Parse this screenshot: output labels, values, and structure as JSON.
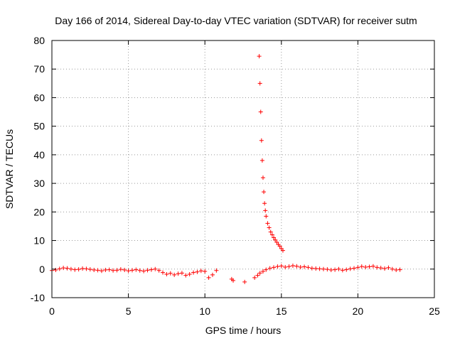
{
  "chart_data": {
    "type": "scatter",
    "title": "Day 166 of 2014, Sidereal Day-to-day VTEC variation (SDTVAR) for receiver sutm",
    "xlabel": "GPS time / hours",
    "ylabel": "SDTVAR / TECUs",
    "xlim": [
      0,
      25
    ],
    "ylim": [
      -10,
      80
    ],
    "x_ticks": [
      0,
      5,
      10,
      15,
      20,
      25
    ],
    "y_ticks": [
      -10,
      0,
      10,
      20,
      30,
      40,
      50,
      60,
      70,
      80
    ],
    "x_tick_labels": [
      "0",
      "5",
      "10",
      "15",
      "20",
      "25"
    ],
    "y_tick_labels": [
      "-10",
      "0",
      "10",
      "20",
      "30",
      "40",
      "50",
      "60",
      "70",
      "80"
    ],
    "grid": true,
    "series": [
      {
        "name": "SDTVAR",
        "color": "#ff0000",
        "marker": "plus",
        "x": [
          0.0,
          0.25,
          0.5,
          0.75,
          1.0,
          1.25,
          1.5,
          1.75,
          2.0,
          2.25,
          2.5,
          2.75,
          3.0,
          3.25,
          3.5,
          3.75,
          4.0,
          4.25,
          4.5,
          4.75,
          5.0,
          5.25,
          5.5,
          5.75,
          6.0,
          6.25,
          6.5,
          6.75,
          7.0,
          7.25,
          7.5,
          7.75,
          8.0,
          8.25,
          8.5,
          8.75,
          9.0,
          9.25,
          9.5,
          9.75,
          10.0,
          10.25,
          10.5,
          10.75,
          11.75,
          11.85,
          12.6,
          13.25,
          13.45,
          13.6,
          13.55,
          13.6,
          13.65,
          13.7,
          13.75,
          13.8,
          13.85,
          13.9,
          13.95,
          14.0,
          14.1,
          14.2,
          14.3,
          14.4,
          14.5,
          14.6,
          14.7,
          14.8,
          14.9,
          15.0,
          15.1,
          13.8,
          14.0,
          14.25,
          14.5,
          14.75,
          15.0,
          15.25,
          15.5,
          15.75,
          16.0,
          16.25,
          16.5,
          16.75,
          17.0,
          17.25,
          17.5,
          17.75,
          18.0,
          18.25,
          18.5,
          18.75,
          19.0,
          19.25,
          19.5,
          19.75,
          20.0,
          20.25,
          20.5,
          20.75,
          21.0,
          21.25,
          21.5,
          21.75,
          22.0,
          22.25,
          22.5,
          22.75
        ],
        "y": [
          -0.5,
          -0.3,
          0.1,
          0.4,
          0.3,
          0.0,
          -0.2,
          -0.1,
          0.2,
          0.1,
          -0.1,
          -0.3,
          -0.4,
          -0.6,
          -0.3,
          -0.2,
          -0.5,
          -0.4,
          -0.1,
          -0.3,
          -0.6,
          -0.4,
          -0.2,
          -0.5,
          -0.7,
          -0.4,
          -0.2,
          0.0,
          -0.5,
          -1.2,
          -1.8,
          -1.5,
          -2.0,
          -1.6,
          -1.4,
          -2.2,
          -1.8,
          -1.2,
          -1.0,
          -0.6,
          -0.8,
          -3.0,
          -2.0,
          -0.5,
          -3.5,
          -4.0,
          -4.5,
          -3.0,
          -2.2,
          -1.4,
          74.5,
          65.0,
          55.0,
          45.0,
          38.0,
          32.0,
          27.0,
          23.0,
          20.5,
          18.5,
          16.0,
          14.5,
          13.0,
          12.0,
          11.0,
          10.2,
          9.4,
          8.6,
          8.0,
          7.2,
          6.5,
          -0.8,
          -0.2,
          0.3,
          0.6,
          0.9,
          1.1,
          0.7,
          0.9,
          1.2,
          1.0,
          0.7,
          0.8,
          0.6,
          0.3,
          0.2,
          0.1,
          0.0,
          -0.1,
          -0.3,
          -0.2,
          0.0,
          -0.4,
          -0.2,
          0.1,
          0.3,
          0.6,
          0.9,
          0.7,
          0.8,
          1.0,
          0.6,
          0.4,
          0.2,
          0.5,
          0.0,
          -0.3,
          -0.2
        ]
      }
    ]
  }
}
